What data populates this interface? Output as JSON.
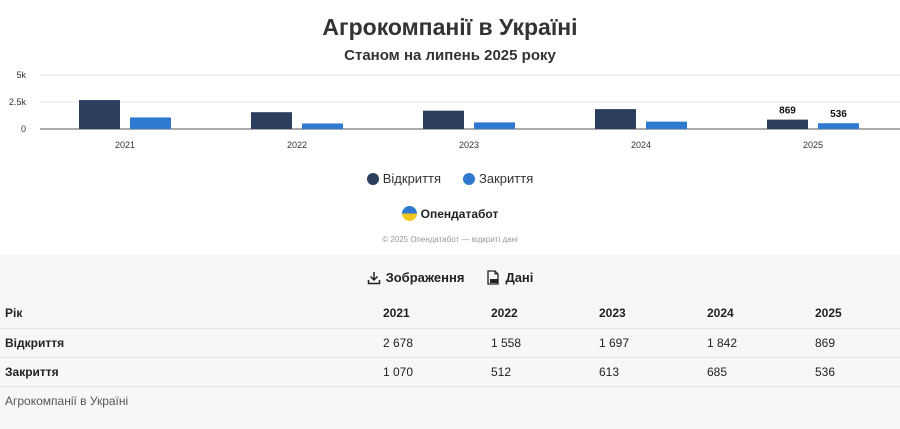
{
  "title": "Агрокомпанії в Україні",
  "subtitle": "Станом на липень 2025 року",
  "colors": {
    "opened": "#2c3e5e",
    "closed": "#2f7ad0"
  },
  "chart_data": {
    "type": "bar",
    "categories": [
      "2021",
      "2022",
      "2023",
      "2024",
      "2025"
    ],
    "series": [
      {
        "name": "Відкриття",
        "values": [
          2678,
          1558,
          1697,
          1842,
          869
        ]
      },
      {
        "name": "Закриття",
        "values": [
          1070,
          512,
          613,
          685,
          536
        ]
      }
    ],
    "ylim": [
      0,
      5000
    ],
    "yticks": [
      {
        "value": 0,
        "label": "0"
      },
      {
        "value": 2500,
        "label": "2.5k"
      },
      {
        "value": 5000,
        "label": "5k"
      }
    ],
    "data_labels": [
      {
        "category": "2025",
        "series": "Відкриття",
        "text": "869"
      },
      {
        "category": "2025",
        "series": "Закриття",
        "text": "536"
      }
    ],
    "legend": "bottom",
    "grid": true
  },
  "brand": {
    "name": "Опендатабот",
    "icon": "opendatabot-logo"
  },
  "copyright": "© 2025 Опендатабот — відкриті дані",
  "downloads": [
    {
      "label": "Зображення",
      "icon": "download-icon"
    },
    {
      "label": "Дані",
      "icon": "csv-file-icon"
    }
  ],
  "table": {
    "headers": [
      "Рік",
      "2021",
      "2022",
      "2023",
      "2024",
      "2025"
    ],
    "rows": [
      {
        "label": "Відкриття",
        "cells": [
          "2 678",
          "1 558",
          "1 697",
          "1 842",
          "869"
        ]
      },
      {
        "label": "Закриття",
        "cells": [
          "1 070",
          "512",
          "613",
          "685",
          "536"
        ]
      }
    ]
  },
  "caption": "Агрокомпанії в Україні"
}
